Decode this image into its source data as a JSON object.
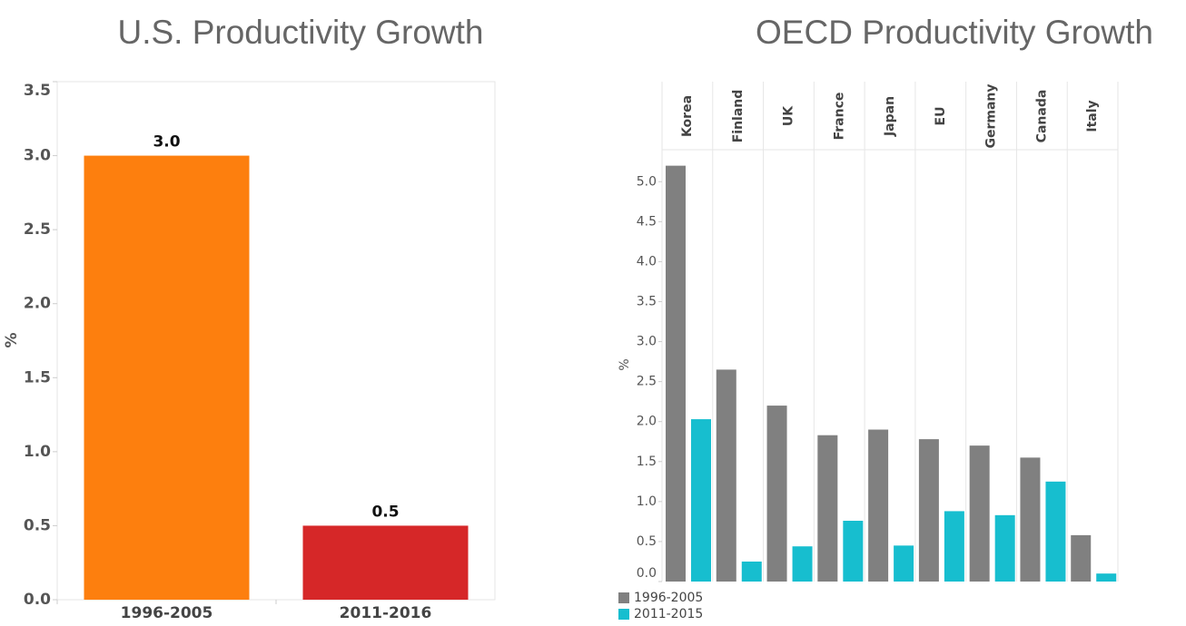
{
  "chart_data": [
    {
      "type": "bar",
      "title": "U.S. Productivity Growth",
      "y_label": "%",
      "categories": [
        "1996-2005",
        "2011-2016"
      ],
      "values": [
        3.0,
        0.5
      ],
      "value_labels": [
        "3.0",
        "0.5"
      ],
      "colors": [
        "#fd7f0e",
        "#d62728"
      ],
      "ylim": [
        0,
        3.5
      ],
      "yticks": [
        {
          "value": 0,
          "label": "0.0"
        },
        {
          "value": 0.5,
          "label": "0.5"
        },
        {
          "value": 1,
          "label": "1.0"
        },
        {
          "value": 1.5,
          "label": "1.5"
        },
        {
          "value": 2,
          "label": "2.0"
        },
        {
          "value": 2.5,
          "label": "2.5"
        },
        {
          "value": 3,
          "label": "3.0"
        },
        {
          "value": 3.5,
          "label": "3.5"
        }
      ]
    },
    {
      "type": "grouped_bar",
      "title": "OECD Productivity Growth",
      "y_label": "%",
      "categories": [
        "Korea",
        "Finland",
        "UK",
        "France",
        "Japan",
        "EU",
        "Germany",
        "Canada",
        "Italy"
      ],
      "series": [
        {
          "name": "1996-2005",
          "color": "#808080",
          "values": [
            5.2,
            2.65,
            2.2,
            1.83,
            1.9,
            1.78,
            1.7,
            1.55,
            0.58
          ]
        },
        {
          "name": "2011-2015",
          "color": "#17becf",
          "values": [
            2.03,
            0.25,
            0.44,
            0.76,
            0.45,
            0.88,
            0.83,
            1.25,
            0.1
          ]
        }
      ],
      "ylim": [
        0,
        5.4
      ],
      "yticks": [
        {
          "value": 0,
          "label": "0.0"
        },
        {
          "value": 0.5,
          "label": "0.5"
        },
        {
          "value": 1,
          "label": "1.0"
        },
        {
          "value": 1.5,
          "label": "1.5"
        },
        {
          "value": 2,
          "label": "2.0"
        },
        {
          "value": 2.5,
          "label": "2.5"
        },
        {
          "value": 3,
          "label": "3.0"
        },
        {
          "value": 3.5,
          "label": "3.5"
        },
        {
          "value": 4,
          "label": "4.0"
        },
        {
          "value": 4.5,
          "label": "4.5"
        },
        {
          "value": 5,
          "label": "5.0"
        }
      ],
      "legend": "bottom-left"
    }
  ]
}
